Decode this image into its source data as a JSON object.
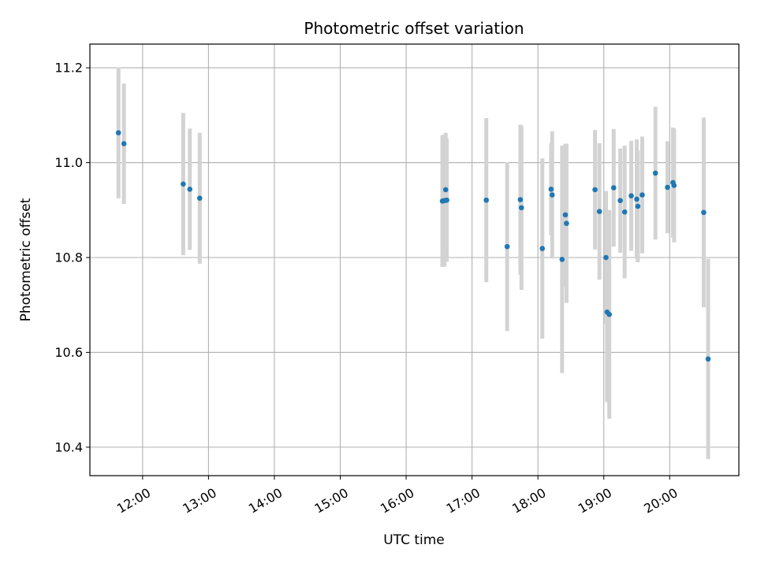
{
  "chart_data": {
    "type": "scatter",
    "title": "Photometric offset variation",
    "xlabel": "UTC time",
    "ylabel": "Photometric offset",
    "x_tick_labels": [
      "12:00",
      "13:00",
      "14:00",
      "15:00",
      "16:00",
      "17:00",
      "18:00",
      "19:00",
      "20:00"
    ],
    "y_tick_labels": [
      "10.4",
      "10.6",
      "10.8",
      "11.0",
      "11.2"
    ],
    "xlim": [
      "11:12",
      "21:03"
    ],
    "ylim": [
      10.34,
      11.25
    ],
    "grid": true,
    "point_color": "#1f77b4",
    "errorbar_color": "#d3d3d3",
    "points": [
      {
        "x": "11:38",
        "y": 11.063,
        "err": 0.138
      },
      {
        "x": "11:43",
        "y": 11.04,
        "err": 0.127
      },
      {
        "x": "12:37",
        "y": 10.955,
        "err": 0.15
      },
      {
        "x": "12:43",
        "y": 10.944,
        "err": 0.128
      },
      {
        "x": "12:52",
        "y": 10.925,
        "err": 0.138
      },
      {
        "x": "16:33",
        "y": 10.919,
        "err": 0.139
      },
      {
        "x": "16:35",
        "y": 10.92,
        "err": 0.139
      },
      {
        "x": "16:36",
        "y": 10.943,
        "err": 0.12
      },
      {
        "x": "16:37",
        "y": 10.921,
        "err": 0.13
      },
      {
        "x": "17:13",
        "y": 10.921,
        "err": 0.173
      },
      {
        "x": "17:32",
        "y": 10.823,
        "err": 0.178
      },
      {
        "x": "17:44",
        "y": 10.922,
        "err": 0.158
      },
      {
        "x": "17:45",
        "y": 10.905,
        "err": 0.173
      },
      {
        "x": "18:04",
        "y": 10.819,
        "err": 0.19
      },
      {
        "x": "18:12",
        "y": 10.944,
        "err": 0.097
      },
      {
        "x": "18:13",
        "y": 10.932,
        "err": 0.134
      },
      {
        "x": "18:22",
        "y": 10.796,
        "err": 0.24
      },
      {
        "x": "18:25",
        "y": 10.89,
        "err": 0.15
      },
      {
        "x": "18:26",
        "y": 10.872,
        "err": 0.168
      },
      {
        "x": "18:52",
        "y": 10.943,
        "err": 0.126
      },
      {
        "x": "18:56",
        "y": 10.897,
        "err": 0.144
      },
      {
        "x": "19:02",
        "y": 10.8,
        "err": 0.14
      },
      {
        "x": "19:03",
        "y": 10.685,
        "err": 0.19
      },
      {
        "x": "19:05",
        "y": 10.68,
        "err": 0.22
      },
      {
        "x": "19:09",
        "y": 10.947,
        "err": 0.124
      },
      {
        "x": "19:15",
        "y": 10.92,
        "err": 0.11
      },
      {
        "x": "19:19",
        "y": 10.896,
        "err": 0.14
      },
      {
        "x": "19:25",
        "y": 10.93,
        "err": 0.116
      },
      {
        "x": "19:30",
        "y": 10.923,
        "err": 0.126
      },
      {
        "x": "19:31",
        "y": 10.908,
        "err": 0.118
      },
      {
        "x": "19:35",
        "y": 10.932,
        "err": 0.123
      },
      {
        "x": "19:47",
        "y": 10.978,
        "err": 0.14
      },
      {
        "x": "19:58",
        "y": 10.948,
        "err": 0.097
      },
      {
        "x": "20:03",
        "y": 10.958,
        "err": 0.116
      },
      {
        "x": "20:04",
        "y": 10.952,
        "err": 0.12
      },
      {
        "x": "20:31",
        "y": 10.895,
        "err": 0.2
      },
      {
        "x": "20:35",
        "y": 10.586,
        "err": 0.211
      }
    ]
  }
}
